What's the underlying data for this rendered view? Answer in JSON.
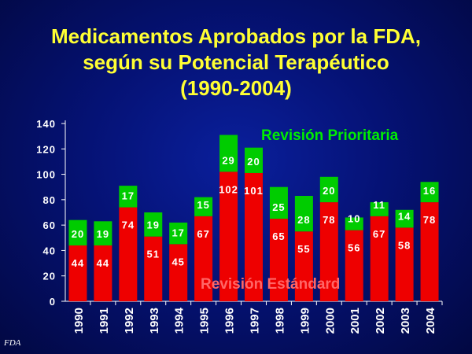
{
  "title": {
    "line1": "Medicamentos Aprobados por la FDA,",
    "line2": "según su Potencial Terapéutico",
    "line3": "(1990-2004)"
  },
  "source": "FDA",
  "colors": {
    "standard": "#ee0000",
    "priority": "#00cc00",
    "title": "#ffff33",
    "label_priority": "#00ee00",
    "label_standard": "#ff6666"
  },
  "chart_data": {
    "type": "bar",
    "stacked": true,
    "categories": [
      "1990",
      "1991",
      "1992",
      "1993",
      "1994",
      "1995",
      "1996",
      "1997",
      "1998",
      "1999",
      "2000",
      "2001",
      "2002",
      "2003",
      "2004"
    ],
    "series": [
      {
        "name": "Revisión Estándar",
        "values": [
          44,
          44,
          74,
          51,
          45,
          67,
          102,
          101,
          65,
          55,
          78,
          56,
          67,
          58,
          78
        ]
      },
      {
        "name": "Revisión Prioritaria",
        "values": [
          20,
          19,
          17,
          19,
          17,
          15,
          29,
          20,
          25,
          28,
          20,
          10,
          11,
          14,
          16
        ]
      }
    ],
    "ylim": [
      0,
      140
    ],
    "yticks": [
      0,
      20,
      40,
      60,
      80,
      100,
      120,
      140
    ],
    "annotations": {
      "priority": "Revisión Prioritaria",
      "standard": "Revisión Estándard"
    },
    "grid": false
  }
}
